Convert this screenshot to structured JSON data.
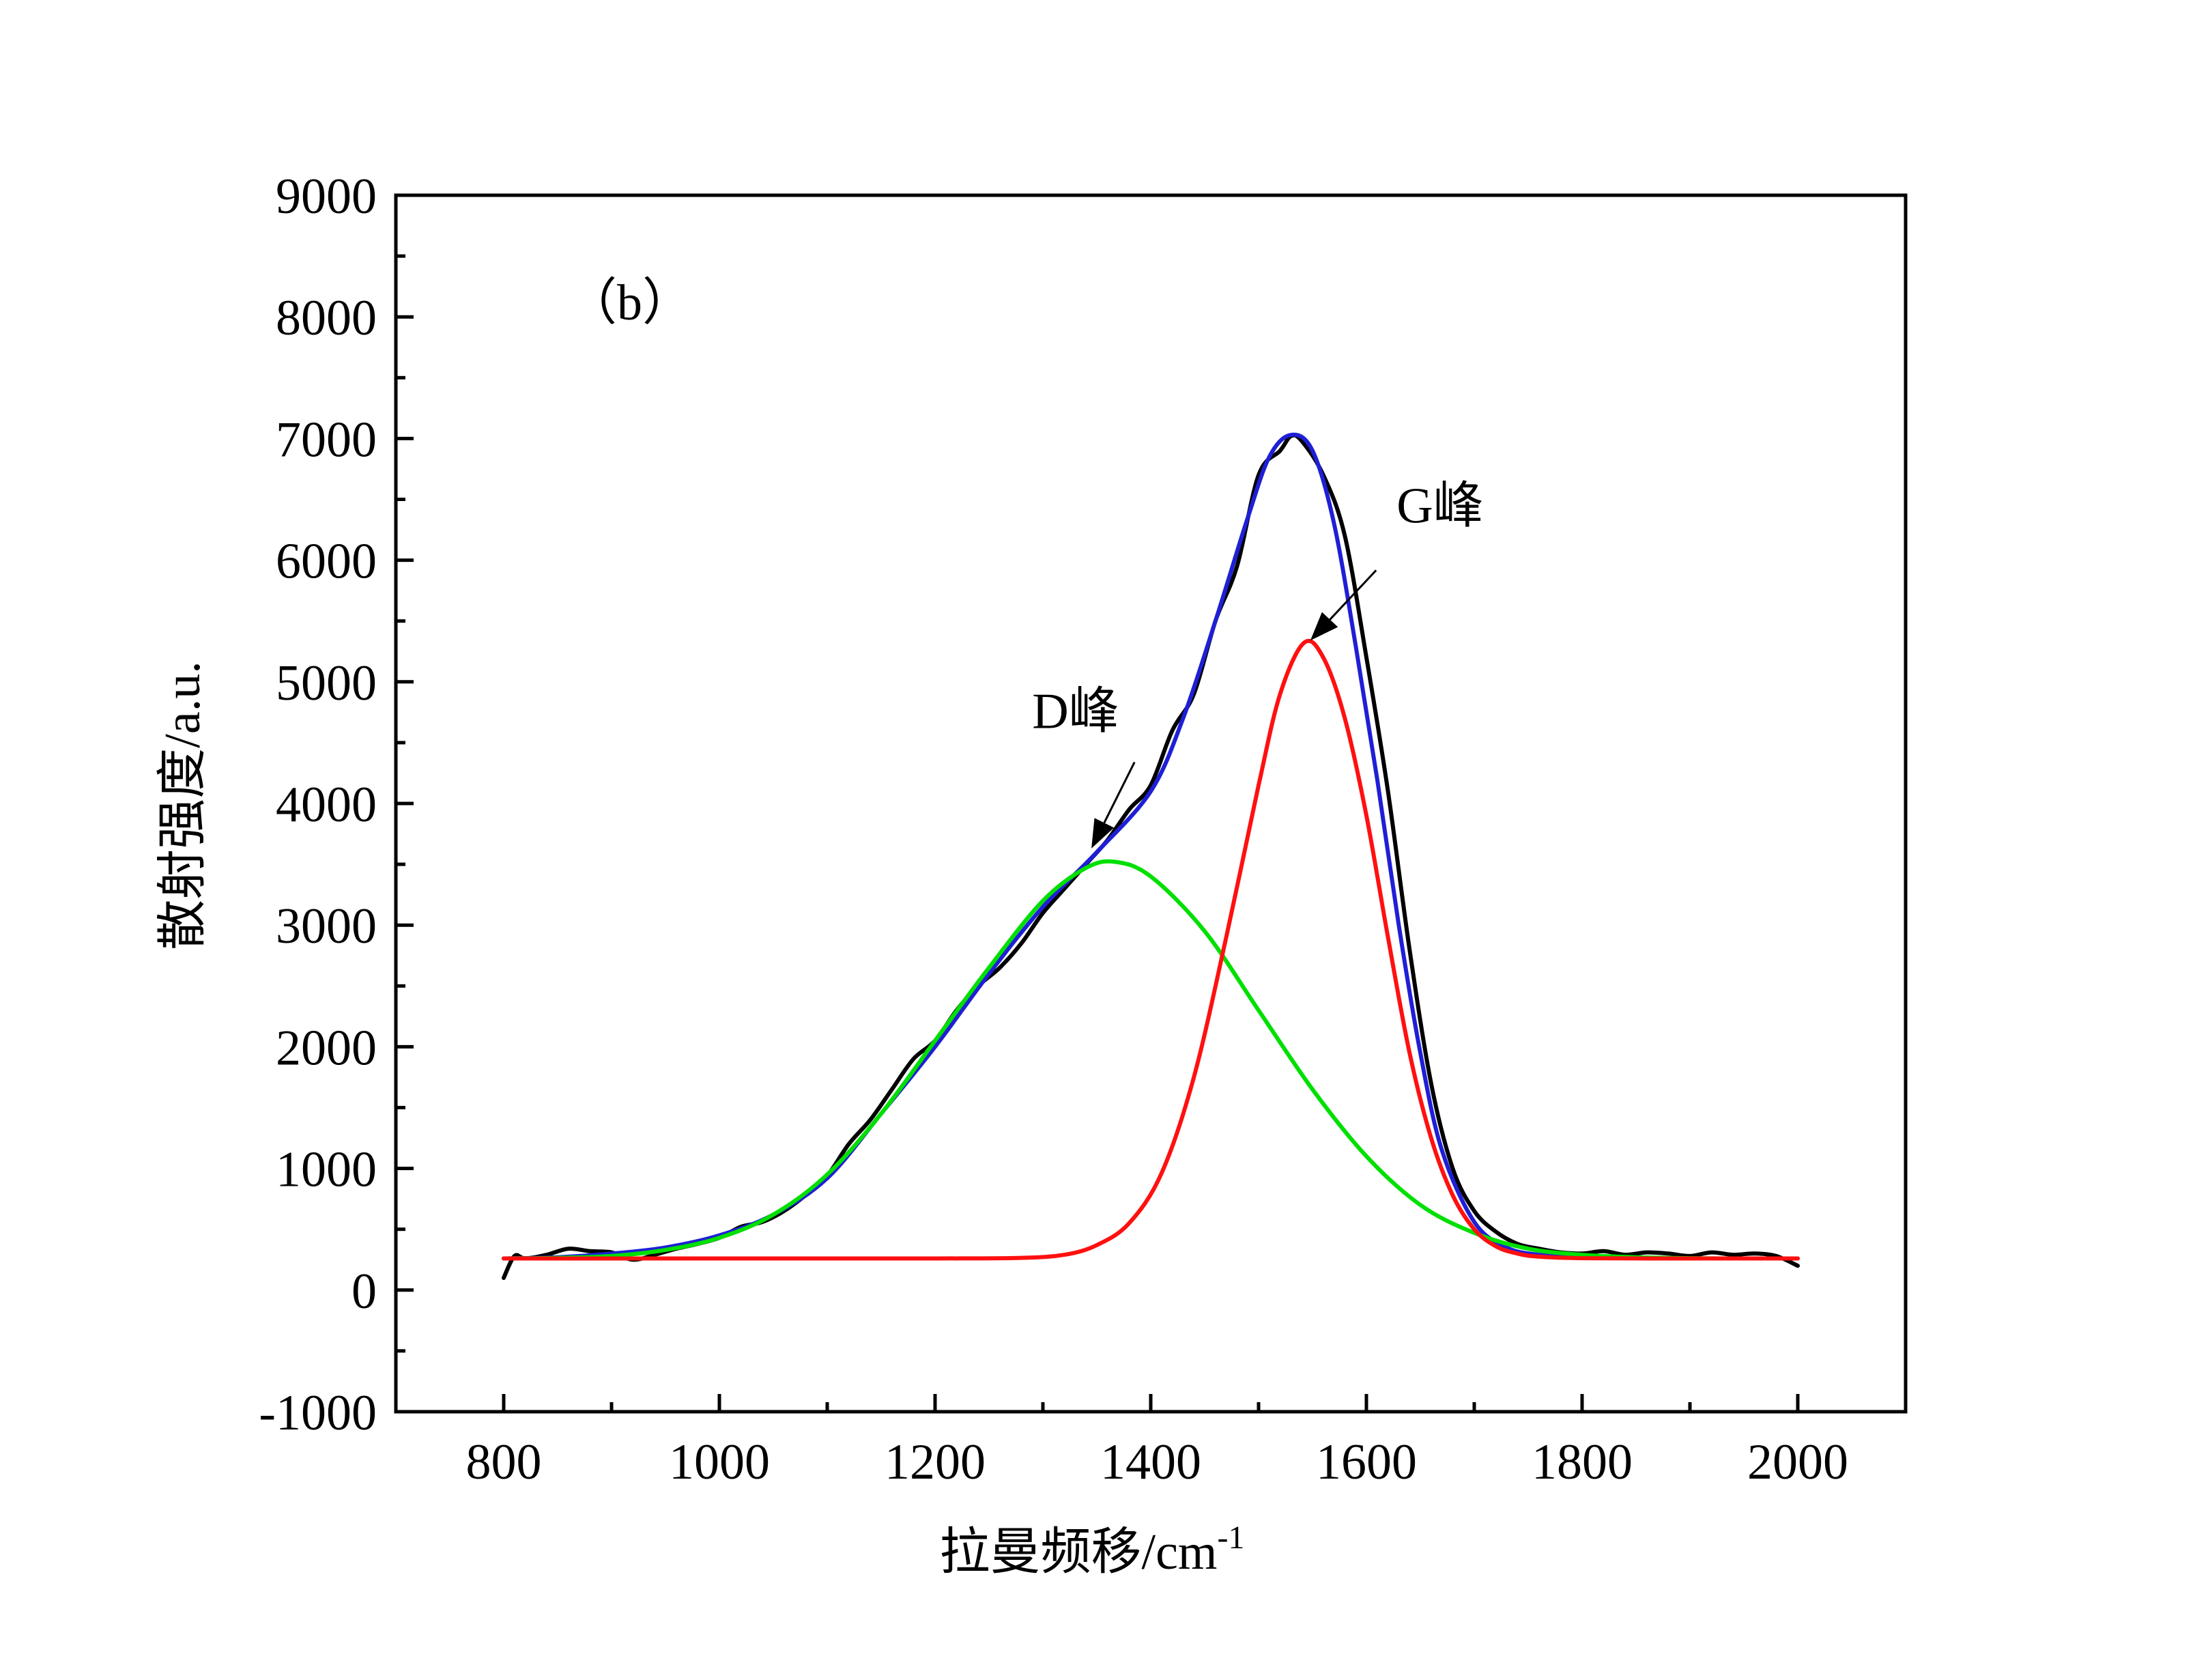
{
  "chart_data": {
    "type": "line",
    "panel_label": "（b）",
    "xlabel": "拉曼频移/cm",
    "xlabel_sup": "-1",
    "ylabel": "散射强度/a.u.",
    "xlim": [
      700,
      2100
    ],
    "ylim": [
      -1000,
      9000
    ],
    "xticks": [
      800,
      1000,
      1200,
      1400,
      1600,
      1800,
      2000
    ],
    "yticks": [
      -1000,
      0,
      1000,
      2000,
      3000,
      4000,
      5000,
      6000,
      7000,
      8000,
      9000
    ],
    "grid": false,
    "legend": "none",
    "series": [
      {
        "color": "#000000",
        "x": [
          800,
          810,
          820,
          840,
          860,
          880,
          900,
          920,
          940,
          960,
          980,
          1000,
          1020,
          1040,
          1060,
          1080,
          1100,
          1120,
          1140,
          1160,
          1180,
          1200,
          1220,
          1240,
          1260,
          1280,
          1300,
          1320,
          1340,
          1360,
          1380,
          1400,
          1420,
          1440,
          1460,
          1480,
          1500,
          1520,
          1530,
          1540,
          1560,
          1580,
          1600,
          1620,
          1640,
          1660,
          1680,
          1700,
          1720,
          1740,
          1760,
          1780,
          1800,
          1820,
          1840,
          1860,
          1880,
          1900,
          1920,
          1940,
          1960,
          1980,
          2000
        ],
        "y": [
          100,
          280,
          260,
          290,
          340,
          320,
          310,
          250,
          290,
          340,
          380,
          430,
          520,
          560,
          650,
          780,
          940,
          1200,
          1400,
          1650,
          1900,
          2050,
          2300,
          2500,
          2650,
          2850,
          3100,
          3300,
          3500,
          3700,
          3950,
          4150,
          4600,
          4900,
          5500,
          5950,
          6700,
          6900,
          7020,
          6980,
          6700,
          6200,
          5200,
          4100,
          2800,
          1700,
          1000,
          650,
          480,
          380,
          340,
          310,
          300,
          320,
          290,
          310,
          300,
          280,
          310,
          290,
          300,
          280,
          200
        ]
      },
      {
        "color": "#1f1fd6",
        "x": [
          800,
          850,
          900,
          950,
          1000,
          1050,
          1100,
          1150,
          1200,
          1250,
          1300,
          1350,
          1400,
          1430,
          1460,
          1490,
          1510,
          1530,
          1550,
          1570,
          1590,
          1610,
          1630,
          1650,
          1670,
          1700,
          1730,
          1760,
          1800,
          1850,
          1900,
          1950,
          2000
        ],
        "y": [
          260,
          270,
          300,
          350,
          450,
          620,
          920,
          1450,
          2000,
          2600,
          3150,
          3600,
          4100,
          4700,
          5500,
          6350,
          6850,
          7030,
          6900,
          6300,
          5300,
          4200,
          3000,
          1950,
          1150,
          560,
          350,
          290,
          270,
          265,
          260,
          260,
          260
        ]
      },
      {
        "color": "#00e000",
        "x": [
          800,
          850,
          900,
          950,
          1000,
          1050,
          1100,
          1150,
          1200,
          1250,
          1300,
          1340,
          1367,
          1400,
          1450,
          1500,
          1550,
          1600,
          1650,
          1700,
          1750,
          1800,
          1850,
          1900,
          1950,
          2000
        ],
        "y": [
          260,
          265,
          280,
          330,
          430,
          620,
          950,
          1450,
          2050,
          2650,
          3200,
          3470,
          3520,
          3400,
          2950,
          2300,
          1650,
          1100,
          700,
          470,
          340,
          290,
          270,
          262,
          260,
          260
        ]
      },
      {
        "color": "#ff1010",
        "x": [
          800,
          1000,
          1200,
          1280,
          1320,
          1350,
          1380,
          1410,
          1440,
          1470,
          1500,
          1520,
          1542,
          1560,
          1580,
          1600,
          1620,
          1640,
          1660,
          1680,
          1700,
          1720,
          1740,
          1760,
          1800,
          1900,
          2000
        ],
        "y": [
          260,
          260,
          260,
          265,
          290,
          370,
          550,
          960,
          1750,
          2900,
          4150,
          4900,
          5320,
          5200,
          4700,
          3900,
          2900,
          1950,
          1250,
          780,
          500,
          360,
          300,
          275,
          262,
          260,
          260
        ]
      }
    ],
    "annotations": [
      {
        "text": "D峰",
        "x": 1290,
        "y": 4620,
        "arrow_to": [
          1345,
          3630
        ]
      },
      {
        "text": "G峰",
        "x": 1628,
        "y": 6310,
        "arrow_to": [
          1548,
          5340
        ]
      }
    ]
  }
}
